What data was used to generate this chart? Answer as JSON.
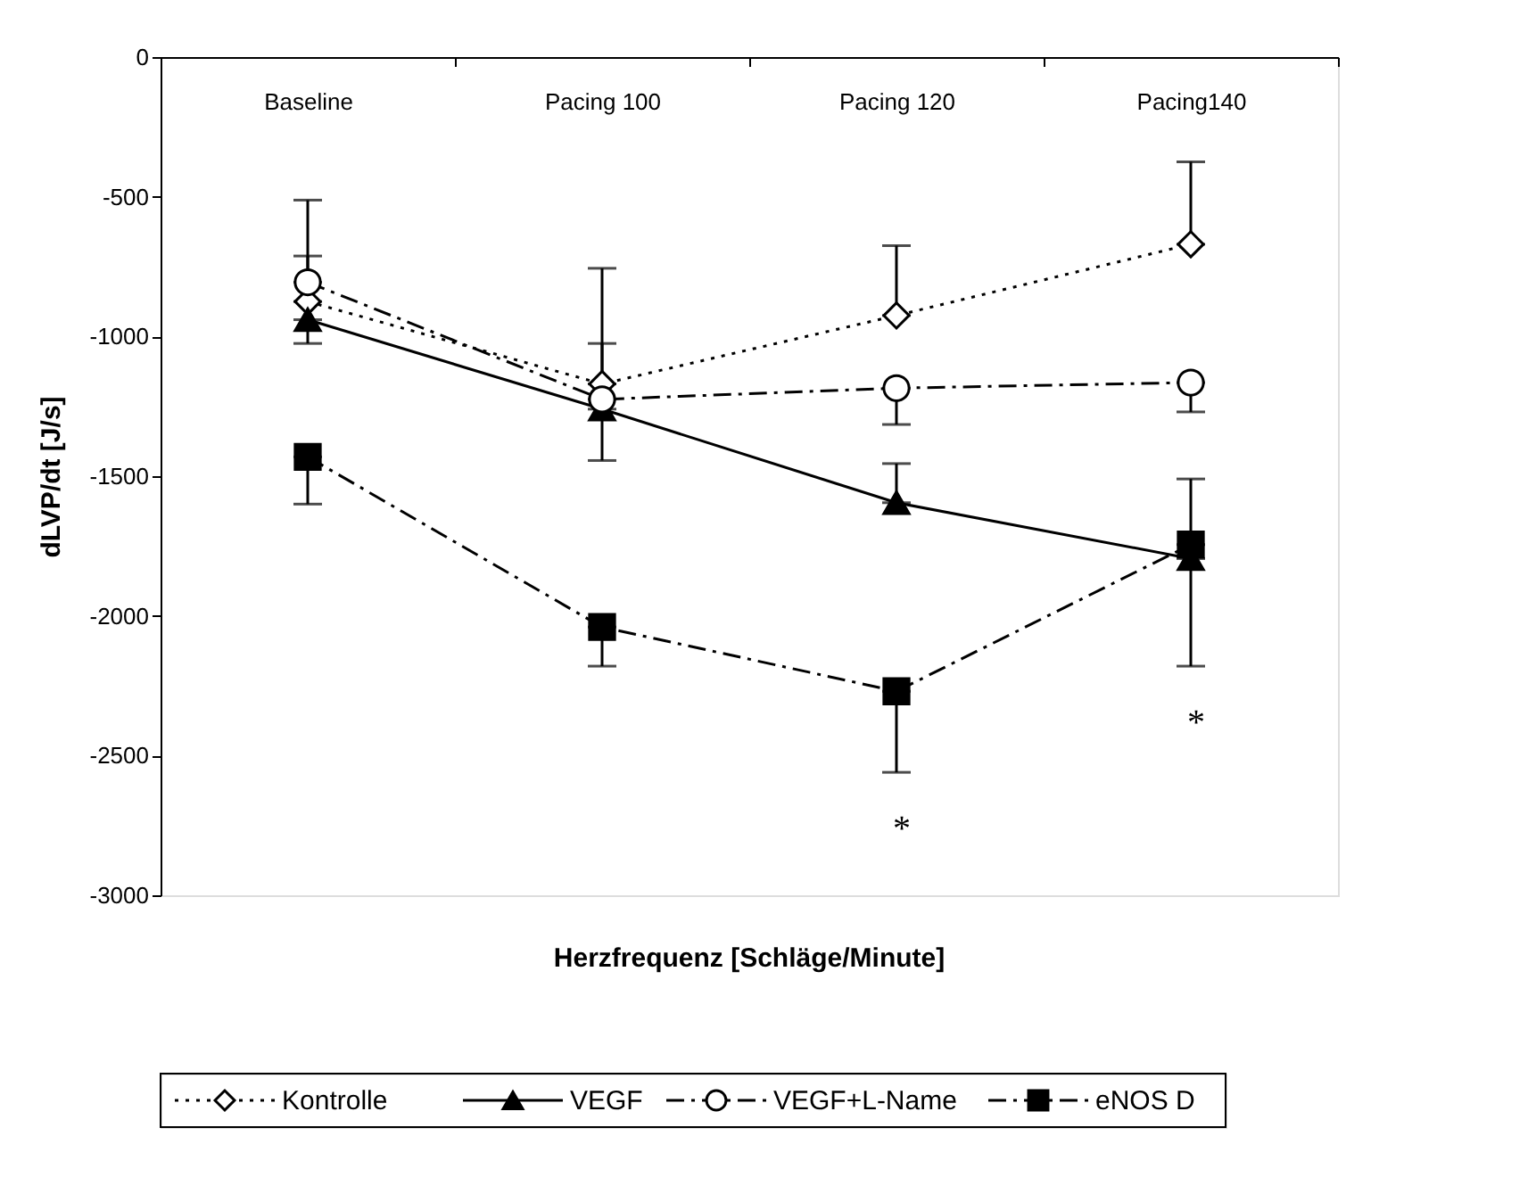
{
  "chart_data": {
    "type": "line",
    "ylabel": "dLVP/dt [J/s]",
    "xlabel": "Herzfrequenz [Schläge/Minute]",
    "categories": [
      "Baseline",
      "Pacing 100",
      "Pacing 120",
      "Pacing140"
    ],
    "ylim": [
      -3000,
      0
    ],
    "yticks": [
      0,
      -500,
      -1000,
      -1500,
      -2000,
      -2500,
      -3000
    ],
    "grid": false,
    "legend": "bottom",
    "series": [
      {
        "name": "Kontrolle",
        "color": "#000000",
        "marker": "diamond",
        "line_style": "dotted",
        "values": [
          -875,
          -1170,
          -925,
          -670
        ],
        "errors": [
          [
            -875,
            -512
          ],
          [
            -1170,
            -756
          ],
          [
            -925,
            -675
          ],
          [
            -670,
            -375
          ]
        ]
      },
      {
        "name": "VEGF",
        "color": "#000000",
        "marker": "triangle",
        "line_style": "solid",
        "values": [
          -940,
          -1260,
          -1595,
          -1795
        ],
        "errors": [
          [
            -1025,
            -940
          ],
          [
            -1444,
            -1260
          ],
          [
            -1595,
            -1455
          ],
          [
            -2180,
            -1795
          ]
        ]
      },
      {
        "name": "VEGF+L-Name",
        "color": "#000000",
        "marker": "circle",
        "line_style": "dashed",
        "values": [
          -806,
          -1225,
          -1185,
          -1165
        ],
        "errors": [
          [
            -806,
            -712
          ],
          [
            -1225,
            -1025
          ],
          [
            -1315,
            -1185
          ],
          [
            -1270,
            -1165
          ]
        ]
      },
      {
        "name": "eNOS D",
        "color": "#000000",
        "marker": "square",
        "line_style": "dashed",
        "values": [
          -1431,
          -2040,
          -2270,
          -1745
        ],
        "errors": [
          [
            -1600,
            -1431
          ],
          [
            -2180,
            -2040
          ],
          [
            -2560,
            -2270
          ],
          [
            -1745,
            -1510
          ]
        ]
      }
    ],
    "annotations": [
      {
        "text": "*",
        "x": "Pacing 120",
        "y": -2560
      },
      {
        "text": "*",
        "x": "Pacing140",
        "y": -2180
      }
    ]
  }
}
